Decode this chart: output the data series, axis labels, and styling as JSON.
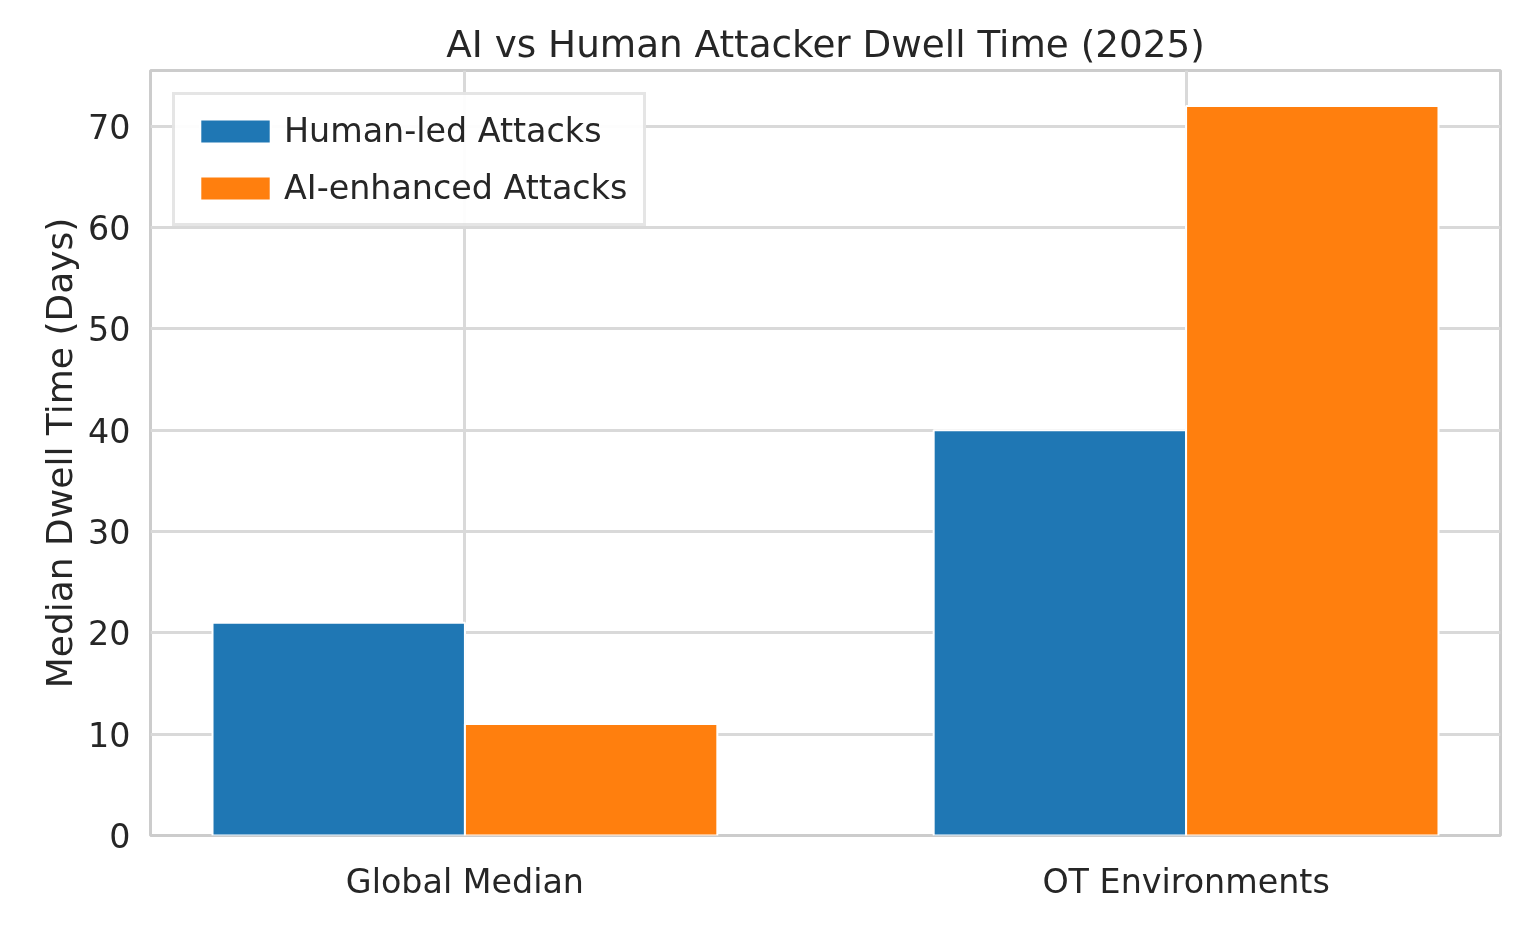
{
  "chart_data": {
    "type": "bar",
    "title": "AI vs Human Attacker Dwell Time (2025)",
    "ylabel": "Median Dwell Time (Days)",
    "categories": [
      "Global Median",
      "OT Environments"
    ],
    "series": [
      {
        "name": "Human-led Attacks",
        "color": "#1f77b4",
        "values": [
          21,
          40
        ]
      },
      {
        "name": "AI-enhanced Attacks",
        "color": "#ff7f0e",
        "values": [
          11,
          72
        ]
      }
    ],
    "ylim": [
      0,
      75.5
    ],
    "yticks": [
      0,
      10,
      20,
      30,
      40,
      50,
      60,
      70
    ],
    "grid": true,
    "legend": "top left"
  }
}
